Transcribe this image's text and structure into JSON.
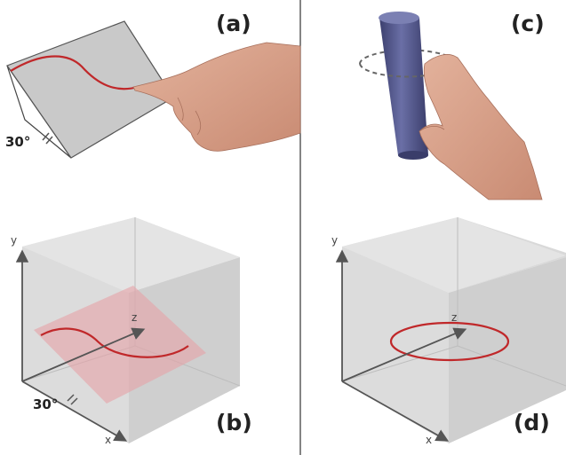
{
  "panels": {
    "a": {
      "label": "(a)",
      "angle": "30°"
    },
    "b": {
      "label": "(b)",
      "angle": "30°",
      "axes": {
        "x": "x",
        "y": "y",
        "z": "z"
      }
    },
    "c": {
      "label": "(c)"
    },
    "d": {
      "label": "(d)",
      "axes": {
        "x": "x",
        "y": "y",
        "z": "z"
      }
    }
  },
  "colors": {
    "curve": "#c0282a",
    "plane": "#e6a1a6",
    "cylinder": "#555a8c",
    "skin": "#d9a08a",
    "box": "#c8c8c8",
    "divider": "#333333"
  }
}
